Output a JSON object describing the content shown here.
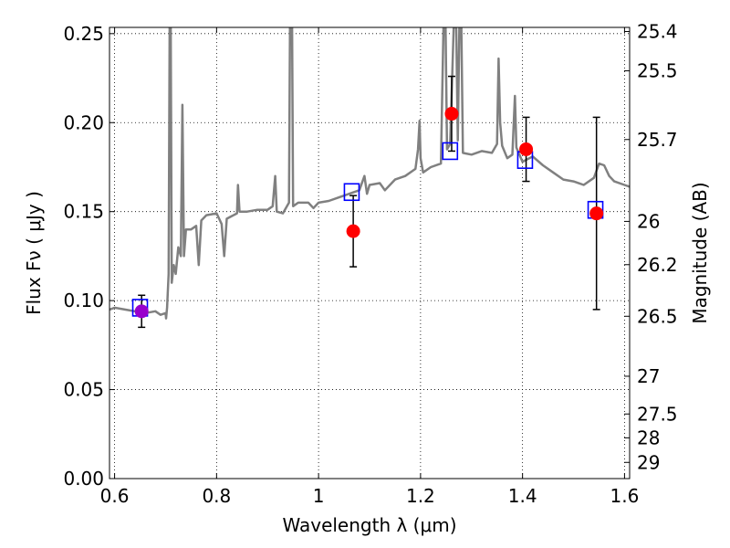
{
  "chart_data": {
    "type": "scatter",
    "xlabel": "Wavelength  λ (μm)",
    "ylabel": "Flux  Fν  ( μJy )",
    "y2label": "Magnitude (AB)",
    "xlim": [
      0.59,
      1.61
    ],
    "ylim": [
      0.0,
      0.2535
    ],
    "grid": true,
    "x_ticks": [
      {
        "value": 0.6,
        "label": "0.6"
      },
      {
        "value": 0.8,
        "label": "0.8"
      },
      {
        "value": 1.0,
        "label": "1"
      },
      {
        "value": 1.2,
        "label": "1.2"
      },
      {
        "value": 1.4,
        "label": "1.4"
      },
      {
        "value": 1.6,
        "label": "1.6"
      }
    ],
    "y_ticks": [
      {
        "value": 0.0,
        "label": "0.00"
      },
      {
        "value": 0.05,
        "label": "0.05"
      },
      {
        "value": 0.1,
        "label": "0.10"
      },
      {
        "value": 0.15,
        "label": "0.15"
      },
      {
        "value": 0.2,
        "label": "0.20"
      },
      {
        "value": 0.25,
        "label": "0.25"
      }
    ],
    "y2_ticks": [
      {
        "mag": "25.4",
        "flux": 0.2512
      },
      {
        "mag": "25.5",
        "flux": 0.2291
      },
      {
        "mag": "25.7",
        "flux": 0.1905
      },
      {
        "mag": "26",
        "flux": 0.1445
      },
      {
        "mag": "26.2",
        "flux": 0.1202
      },
      {
        "mag": "26.5",
        "flux": 0.0912
      },
      {
        "mag": "27",
        "flux": 0.0575
      },
      {
        "mag": "27.5",
        "flux": 0.0363
      },
      {
        "mag": "28",
        "flux": 0.0229
      },
      {
        "mag": "29",
        "flux": 0.0091
      }
    ],
    "series": [
      {
        "kind": "spectrum",
        "color": "#808080",
        "points": [
          [
            0.59,
            0.095
          ],
          [
            0.6,
            0.096
          ],
          [
            0.62,
            0.095
          ],
          [
            0.64,
            0.094
          ],
          [
            0.66,
            0.093
          ],
          [
            0.68,
            0.094
          ],
          [
            0.69,
            0.092
          ],
          [
            0.7,
            0.093
          ],
          [
            0.701,
            0.09
          ],
          [
            0.703,
            0.096
          ],
          [
            0.706,
            0.115
          ],
          [
            0.708,
            0.2535
          ],
          [
            0.71,
            0.2535
          ],
          [
            0.712,
            0.11
          ],
          [
            0.716,
            0.12
          ],
          [
            0.72,
            0.115
          ],
          [
            0.725,
            0.13
          ],
          [
            0.73,
            0.125
          ],
          [
            0.733,
            0.21
          ],
          [
            0.736,
            0.125
          ],
          [
            0.74,
            0.14
          ],
          [
            0.75,
            0.14
          ],
          [
            0.76,
            0.142
          ],
          [
            0.765,
            0.12
          ],
          [
            0.77,
            0.145
          ],
          [
            0.78,
            0.148
          ],
          [
            0.8,
            0.149
          ],
          [
            0.81,
            0.143
          ],
          [
            0.815,
            0.125
          ],
          [
            0.82,
            0.146
          ],
          [
            0.84,
            0.149
          ],
          [
            0.842,
            0.165
          ],
          [
            0.845,
            0.15
          ],
          [
            0.86,
            0.15
          ],
          [
            0.88,
            0.151
          ],
          [
            0.9,
            0.151
          ],
          [
            0.91,
            0.153
          ],
          [
            0.915,
            0.17
          ],
          [
            0.918,
            0.15
          ],
          [
            0.93,
            0.149
          ],
          [
            0.942,
            0.155
          ],
          [
            0.944,
            0.2535
          ],
          [
            0.948,
            0.2535
          ],
          [
            0.95,
            0.153
          ],
          [
            0.96,
            0.155
          ],
          [
            0.98,
            0.155
          ],
          [
            0.99,
            0.152
          ],
          [
            1.0,
            0.155
          ],
          [
            1.02,
            0.156
          ],
          [
            1.04,
            0.158
          ],
          [
            1.06,
            0.16
          ],
          [
            1.08,
            0.162
          ],
          [
            1.09,
            0.17
          ],
          [
            1.095,
            0.16
          ],
          [
            1.1,
            0.165
          ],
          [
            1.12,
            0.166
          ],
          [
            1.13,
            0.162
          ],
          [
            1.15,
            0.168
          ],
          [
            1.17,
            0.17
          ],
          [
            1.19,
            0.174
          ],
          [
            1.195,
            0.185
          ],
          [
            1.198,
            0.201
          ],
          [
            1.2,
            0.18
          ],
          [
            1.205,
            0.172
          ],
          [
            1.22,
            0.175
          ],
          [
            1.24,
            0.177
          ],
          [
            1.245,
            0.2535
          ],
          [
            1.249,
            0.2535
          ],
          [
            1.252,
            0.185
          ],
          [
            1.258,
            0.188
          ],
          [
            1.265,
            0.2535
          ],
          [
            1.27,
            0.2535
          ],
          [
            1.273,
            0.19
          ],
          [
            1.276,
            0.2535
          ],
          [
            1.28,
            0.2535
          ],
          [
            1.283,
            0.183
          ],
          [
            1.3,
            0.182
          ],
          [
            1.32,
            0.184
          ],
          [
            1.34,
            0.183
          ],
          [
            1.35,
            0.188
          ],
          [
            1.353,
            0.236
          ],
          [
            1.356,
            0.2
          ],
          [
            1.36,
            0.187
          ],
          [
            1.37,
            0.18
          ],
          [
            1.38,
            0.182
          ],
          [
            1.385,
            0.215
          ],
          [
            1.388,
            0.186
          ],
          [
            1.4,
            0.178
          ],
          [
            1.42,
            0.181
          ],
          [
            1.44,
            0.176
          ],
          [
            1.46,
            0.172
          ],
          [
            1.48,
            0.168
          ],
          [
            1.5,
            0.167
          ],
          [
            1.52,
            0.165
          ],
          [
            1.54,
            0.169
          ],
          [
            1.55,
            0.177
          ],
          [
            1.56,
            0.176
          ],
          [
            1.57,
            0.17
          ],
          [
            1.58,
            0.167
          ],
          [
            1.6,
            0.165
          ],
          [
            1.61,
            0.164
          ]
        ]
      },
      {
        "kind": "model_squares",
        "color": "#0000ff",
        "points": [
          [
            0.65,
            0.096
          ],
          [
            1.065,
            0.161
          ],
          [
            1.258,
            0.184
          ],
          [
            1.405,
            0.179
          ],
          [
            1.543,
            0.151
          ]
        ]
      },
      {
        "kind": "observed",
        "color": "#ff0000",
        "points": [
          {
            "x": 0.653,
            "y": 0.094,
            "err": 0.009,
            "color": "#9900cc"
          },
          {
            "x": 1.068,
            "y": 0.139,
            "err": 0.02,
            "color": "#ff0000"
          },
          {
            "x": 1.261,
            "y": 0.205,
            "err": 0.021,
            "color": "#ff0000"
          },
          {
            "x": 1.407,
            "y": 0.185,
            "err": 0.018,
            "color": "#ff0000"
          },
          {
            "x": 1.545,
            "y": 0.149,
            "err": 0.054,
            "color": "#ff0000"
          }
        ]
      }
    ]
  }
}
